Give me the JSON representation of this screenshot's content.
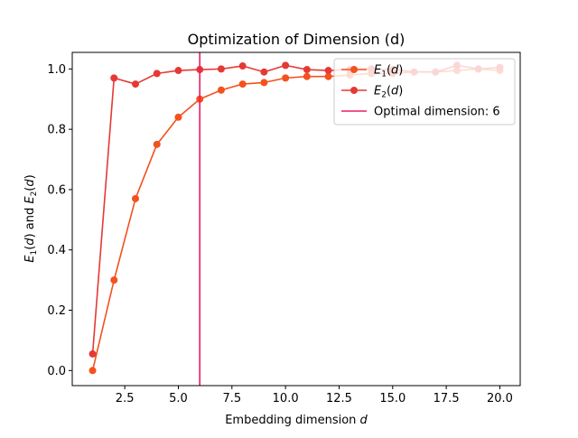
{
  "chart_data": {
    "type": "line",
    "title": "Optimization of Dimension (d)",
    "xlabel": "Embedding dimension d",
    "ylabel": "E1(d) and E2(d)",
    "xlim": [
      0.05,
      20.95
    ],
    "ylim": [
      -0.05,
      1.055
    ],
    "xticks": [
      2.5,
      5.0,
      7.5,
      10.0,
      12.5,
      15.0,
      17.5,
      20.0
    ],
    "xtick_labels": [
      "2.5",
      "5.0",
      "7.5",
      "10.0",
      "12.5",
      "15.0",
      "17.5",
      "20.0"
    ],
    "yticks": [
      0.0,
      0.2,
      0.4,
      0.6,
      0.8,
      1.0
    ],
    "ytick_labels": [
      "0.0",
      "0.2",
      "0.4",
      "0.6",
      "0.8",
      "1.0"
    ],
    "grid": false,
    "legend_position": "upper right",
    "x": [
      1,
      2,
      3,
      4,
      5,
      6,
      7,
      8,
      9,
      10,
      11,
      12,
      13,
      14,
      15,
      16,
      17,
      18,
      19,
      20
    ],
    "series": [
      {
        "name": "E1(d)",
        "color": "#f4511e",
        "marker": "circle",
        "values": [
          0.0,
          0.3,
          0.57,
          0.75,
          0.84,
          0.9,
          0.93,
          0.95,
          0.955,
          0.97,
          0.975,
          0.975,
          0.98,
          0.985,
          0.985,
          0.99,
          0.99,
          0.995,
          1.0,
          0.995
        ]
      },
      {
        "name": "E2(d)",
        "color": "#e53935",
        "marker": "circle",
        "values": [
          0.055,
          0.97,
          0.95,
          0.985,
          0.995,
          0.998,
          1.0,
          1.01,
          0.99,
          1.012,
          0.998,
          0.995,
          0.998,
          1.0,
          0.998,
          0.99,
          0.99,
          1.012,
          1.0,
          1.005
        ]
      }
    ],
    "vline": {
      "x": 6,
      "label": "Optimal dimension: 6",
      "color": "#e91e63"
    }
  }
}
